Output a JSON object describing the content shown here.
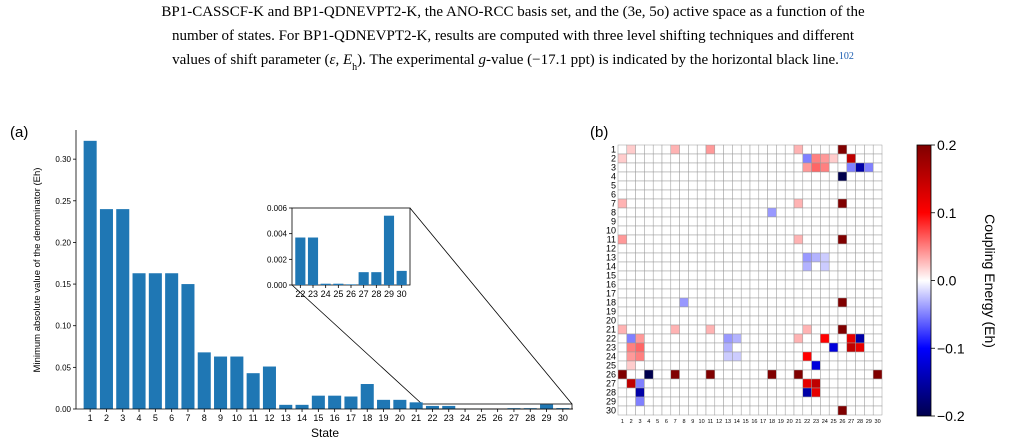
{
  "caption": {
    "line1": "BP1-CASSCF-K and BP1-QDNEVPT2-K, the ANO-RCC basis set, and the (3e, 5o) active space as a function of the",
    "line2": "number of states. For BP1-QDNEVPT2-K, results are computed with three level shifting techniques and different",
    "line3": [
      "values of shift parameter (",
      "ε",
      ", ",
      "E",
      "h",
      "). The experimental ",
      "g",
      "-value (−17.1 ppt) is indicated by the horizontal black line.",
      "102"
    ]
  },
  "chart_data": [
    {
      "type": "bar",
      "panel": "(a)",
      "xlabel": "State",
      "ylabel": "Minimum absolute value of the denominator (Eh)",
      "color": "#1f77b4",
      "categories": [
        "1",
        "2",
        "3",
        "4",
        "5",
        "6",
        "7",
        "8",
        "9",
        "10",
        "11",
        "12",
        "13",
        "14",
        "15",
        "16",
        "17",
        "18",
        "19",
        "20",
        "21",
        "22",
        "23",
        "24",
        "25",
        "26",
        "27",
        "28",
        "29",
        "30"
      ],
      "values": [
        0.322,
        0.24,
        0.24,
        0.163,
        0.163,
        0.163,
        0.15,
        0.068,
        0.063,
        0.063,
        0.043,
        0.051,
        0.005,
        0.005,
        0.016,
        0.016,
        0.015,
        0.03,
        0.011,
        0.011,
        0.008,
        0.0037,
        0.0037,
        0.0001,
        0.0001,
        5e-05,
        0.001,
        0.001,
        0.0054,
        0.0011
      ],
      "ylim": [
        0,
        0.335
      ],
      "yticks": [
        {
          "value": 0,
          "label": "0.00"
        },
        {
          "value": 0.05,
          "label": "0.05"
        },
        {
          "value": 0.1,
          "label": "0.10"
        },
        {
          "value": 0.15,
          "label": "0.15"
        },
        {
          "value": 0.2,
          "label": "0.20"
        },
        {
          "value": 0.25,
          "label": "0.25"
        },
        {
          "value": 0.3,
          "label": "0.30"
        }
      ]
    },
    {
      "type": "bar",
      "color": "#1f77b4",
      "categories": [
        "22",
        "23",
        "24",
        "25",
        "26",
        "27",
        "28",
        "29",
        "30"
      ],
      "values": [
        0.0037,
        0.0037,
        0.0001,
        0.0001,
        5e-05,
        0.001,
        0.001,
        0.0054,
        0.0011
      ],
      "ylim": [
        0,
        0.006
      ],
      "yticks": [
        {
          "value": 0,
          "label": "0.000"
        },
        {
          "value": 0.002,
          "label": "0.002"
        },
        {
          "value": 0.004,
          "label": "0.004"
        },
        {
          "value": 0.006,
          "label": "0.006"
        }
      ]
    },
    {
      "type": "heatmap",
      "panel": "(b)",
      "colormap": "seismic",
      "colorbar_label": "Coupling Energy (Eh)",
      "x": [
        "1",
        "2",
        "3",
        "4",
        "5",
        "6",
        "7",
        "8",
        "9",
        "10",
        "11",
        "12",
        "13",
        "14",
        "15",
        "16",
        "17",
        "18",
        "19",
        "20",
        "21",
        "22",
        "23",
        "24",
        "25",
        "26",
        "27",
        "28",
        "29",
        "30"
      ],
      "y": [
        "1",
        "2",
        "3",
        "4",
        "5",
        "6",
        "7",
        "8",
        "9",
        "10",
        "11",
        "12",
        "13",
        "14",
        "15",
        "16",
        "17",
        "18",
        "19",
        "20",
        "21",
        "22",
        "23",
        "24",
        "25",
        "26",
        "27",
        "28",
        "29",
        "30"
      ],
      "zlim": [
        -0.2,
        0.2
      ],
      "zticks": [
        0.2,
        0.1,
        {
          "value": 0,
          "label": "0.0"
        },
        {
          "value": -0.1,
          "label": "−0.1"
        },
        {
          "value": -0.2,
          "label": "−0.2"
        }
      ],
      "z": [
        [
          0,
          0.02,
          0,
          0,
          0,
          0,
          0.03,
          0,
          0,
          0,
          0.04,
          0,
          0,
          0,
          0,
          0,
          0,
          0,
          0,
          0,
          0.03,
          0,
          0,
          0,
          0,
          0.2,
          0,
          0,
          0,
          0
        ],
        [
          0.02,
          0,
          0,
          0,
          0,
          0,
          0,
          0,
          0,
          0,
          0,
          0,
          0,
          0,
          0,
          0,
          0,
          0,
          0,
          0,
          0,
          -0.05,
          0.05,
          0.04,
          0.02,
          0,
          0.15,
          0,
          0,
          0
        ],
        [
          0,
          0,
          0,
          0,
          0,
          0,
          0,
          0,
          0,
          0,
          0,
          0,
          0,
          0,
          0,
          0,
          0,
          0,
          0,
          0,
          0,
          0.04,
          0.06,
          0.05,
          0,
          0,
          -0.05,
          -0.15,
          -0.05,
          0
        ],
        [
          0,
          0,
          0,
          0,
          0,
          0,
          0,
          0,
          0,
          0,
          0,
          0,
          0,
          0,
          0,
          0,
          0,
          0,
          0,
          0,
          0,
          0,
          0,
          0,
          0,
          -0.2,
          0,
          0,
          0,
          0
        ],
        [
          0,
          0,
          0,
          0,
          0,
          0,
          0,
          0,
          0,
          0,
          0,
          0,
          0,
          0,
          0,
          0,
          0,
          0,
          0,
          0,
          0,
          0,
          0,
          0,
          0,
          0,
          0,
          0,
          0,
          0
        ],
        [
          0,
          0,
          0,
          0,
          0,
          0,
          0,
          0,
          0,
          0,
          0,
          0,
          0,
          0,
          0,
          0,
          0,
          0,
          0,
          0,
          0,
          0,
          0,
          0,
          0,
          0,
          0,
          0,
          0,
          0
        ],
        [
          0.03,
          0,
          0,
          0,
          0,
          0,
          0,
          0,
          0,
          0,
          0,
          0,
          0,
          0,
          0,
          0,
          0,
          0,
          0,
          0,
          0.03,
          0,
          0,
          0,
          0,
          0.2,
          0,
          0,
          0,
          0
        ],
        [
          0,
          0,
          0,
          0,
          0,
          0,
          0,
          0,
          0,
          0,
          0,
          0,
          0,
          0,
          0,
          0,
          0,
          -0.04,
          0,
          0,
          0,
          0,
          0,
          0,
          0,
          0,
          0,
          0,
          0,
          0
        ],
        [
          0,
          0,
          0,
          0,
          0,
          0,
          0,
          0,
          0,
          0,
          0,
          0,
          0,
          0,
          0,
          0,
          0,
          0,
          0,
          0,
          0,
          0,
          0,
          0,
          0,
          0,
          0,
          0,
          0,
          0
        ],
        [
          0,
          0,
          0,
          0,
          0,
          0,
          0,
          0,
          0,
          0,
          0,
          0,
          0,
          0,
          0,
          0,
          0,
          0,
          0,
          0,
          0,
          0,
          0,
          0,
          0,
          0,
          0,
          0,
          0,
          0
        ],
        [
          0.04,
          0,
          0,
          0,
          0,
          0,
          0,
          0,
          0,
          0,
          0,
          0,
          0,
          0,
          0,
          0,
          0,
          0,
          0,
          0,
          0.03,
          0,
          0,
          0,
          0,
          0.2,
          0,
          0,
          0,
          0
        ],
        [
          0,
          0,
          0,
          0,
          0,
          0,
          0,
          0,
          0,
          0,
          0,
          0,
          0,
          0,
          0,
          0,
          0,
          0,
          0,
          0,
          0,
          0,
          0,
          0,
          0,
          0,
          0,
          0,
          0,
          0
        ],
        [
          0,
          0,
          0,
          0,
          0,
          0,
          0,
          0,
          0,
          0,
          0,
          0,
          0,
          0,
          0,
          0,
          0,
          0,
          0,
          0,
          0,
          -0.04,
          -0.03,
          -0.02,
          0,
          0,
          0,
          0,
          0,
          0
        ],
        [
          0,
          0,
          0,
          0,
          0,
          0,
          0,
          0,
          0,
          0,
          0,
          0,
          0,
          0,
          0,
          0,
          0,
          0,
          0,
          0,
          0,
          -0.03,
          0,
          -0.02,
          0,
          0,
          0,
          0,
          0,
          0
        ],
        [
          0,
          0,
          0,
          0,
          0,
          0,
          0,
          0,
          0,
          0,
          0,
          0,
          0,
          0,
          0,
          0,
          0,
          0,
          0,
          0,
          0,
          0,
          0,
          0,
          0,
          0,
          0,
          0,
          0,
          0
        ],
        [
          0,
          0,
          0,
          0,
          0,
          0,
          0,
          0,
          0,
          0,
          0,
          0,
          0,
          0,
          0,
          0,
          0,
          0,
          0,
          0,
          0,
          0,
          0,
          0,
          0,
          0,
          0,
          0,
          0,
          0
        ],
        [
          0,
          0,
          0,
          0,
          0,
          0,
          0,
          0,
          0,
          0,
          0,
          0,
          0,
          0,
          0,
          0,
          0,
          0,
          0,
          0,
          0,
          0,
          0,
          0,
          0,
          0,
          0,
          0,
          0,
          0
        ],
        [
          0,
          0,
          0,
          0,
          0,
          0,
          0,
          -0.04,
          0,
          0,
          0,
          0,
          0,
          0,
          0,
          0,
          0,
          0,
          0,
          0,
          0,
          0,
          0,
          0,
          0,
          0.2,
          0,
          0,
          0,
          0
        ],
        [
          0,
          0,
          0,
          0,
          0,
          0,
          0,
          0,
          0,
          0,
          0,
          0,
          0,
          0,
          0,
          0,
          0,
          0,
          0,
          0,
          0,
          0,
          0,
          0,
          0,
          0,
          0,
          0,
          0,
          0
        ],
        [
          0,
          0,
          0,
          0,
          0,
          0,
          0,
          0,
          0,
          0,
          0,
          0,
          0,
          0,
          0,
          0,
          0,
          0,
          0,
          0,
          0,
          0,
          0,
          0,
          0,
          0,
          0,
          0,
          0,
          0
        ],
        [
          0.03,
          0,
          0,
          0,
          0,
          0,
          0.03,
          0,
          0,
          0,
          0.03,
          0,
          0,
          0,
          0,
          0,
          0,
          0,
          0,
          0,
          0,
          0.03,
          0,
          0,
          0,
          0.2,
          0,
          0,
          0,
          0
        ],
        [
          0,
          -0.05,
          0.04,
          0,
          0,
          0,
          0,
          0,
          0,
          0,
          0,
          0,
          -0.04,
          -0.03,
          0,
          0,
          0,
          0,
          0,
          0,
          0.03,
          0,
          0,
          0.1,
          0,
          0,
          0.12,
          -0.15,
          0,
          0
        ],
        [
          0,
          0.05,
          0.06,
          0,
          0,
          0,
          0,
          0,
          0,
          0,
          0,
          0,
          -0.03,
          0,
          0,
          0,
          0,
          0,
          0,
          0,
          0,
          0,
          0,
          0,
          -0.12,
          0,
          0.15,
          0.12,
          0,
          0
        ],
        [
          0,
          0.04,
          0.05,
          0,
          0,
          0,
          0,
          0,
          0,
          0,
          0,
          0,
          -0.02,
          -0.02,
          0,
          0,
          0,
          0,
          0,
          0,
          0,
          0.1,
          0,
          0,
          0,
          0,
          0,
          0,
          0,
          0
        ],
        [
          0,
          0.02,
          0,
          0,
          0,
          0,
          0,
          0,
          0,
          0,
          0,
          0,
          0,
          0,
          0,
          0,
          0,
          0,
          0,
          0,
          0,
          0,
          -0.12,
          0,
          0,
          0,
          0,
          0,
          0,
          0
        ],
        [
          0.2,
          0,
          0,
          -0.2,
          0,
          0,
          0.2,
          0,
          0,
          0,
          0.2,
          0,
          0,
          0,
          0,
          0,
          0,
          0.2,
          0,
          0,
          0.2,
          0,
          0,
          0,
          0,
          0,
          0,
          0,
          0,
          0.2
        ],
        [
          0,
          0.15,
          -0.05,
          0,
          0,
          0,
          0,
          0,
          0,
          0,
          0,
          0,
          0,
          0,
          0,
          0,
          0,
          0,
          0,
          0,
          0,
          0.12,
          0.15,
          0,
          0,
          0,
          0,
          0,
          0,
          0
        ],
        [
          0,
          0,
          -0.15,
          0,
          0,
          0,
          0,
          0,
          0,
          0,
          0,
          0,
          0,
          0,
          0,
          0,
          0,
          0,
          0,
          0,
          0,
          -0.15,
          0.12,
          0,
          0,
          0,
          0,
          0,
          0,
          0
        ],
        [
          0,
          0,
          -0.05,
          0,
          0,
          0,
          0,
          0,
          0,
          0,
          0,
          0,
          0,
          0,
          0,
          0,
          0,
          0,
          0,
          0,
          0,
          0,
          0,
          0,
          0,
          0,
          0,
          0,
          0,
          0
        ],
        [
          0,
          0,
          0,
          0,
          0,
          0,
          0,
          0,
          0,
          0,
          0,
          0,
          0,
          0,
          0,
          0,
          0,
          0,
          0,
          0,
          0,
          0,
          0,
          0,
          0,
          0.2,
          0,
          0,
          0,
          0
        ]
      ]
    }
  ]
}
